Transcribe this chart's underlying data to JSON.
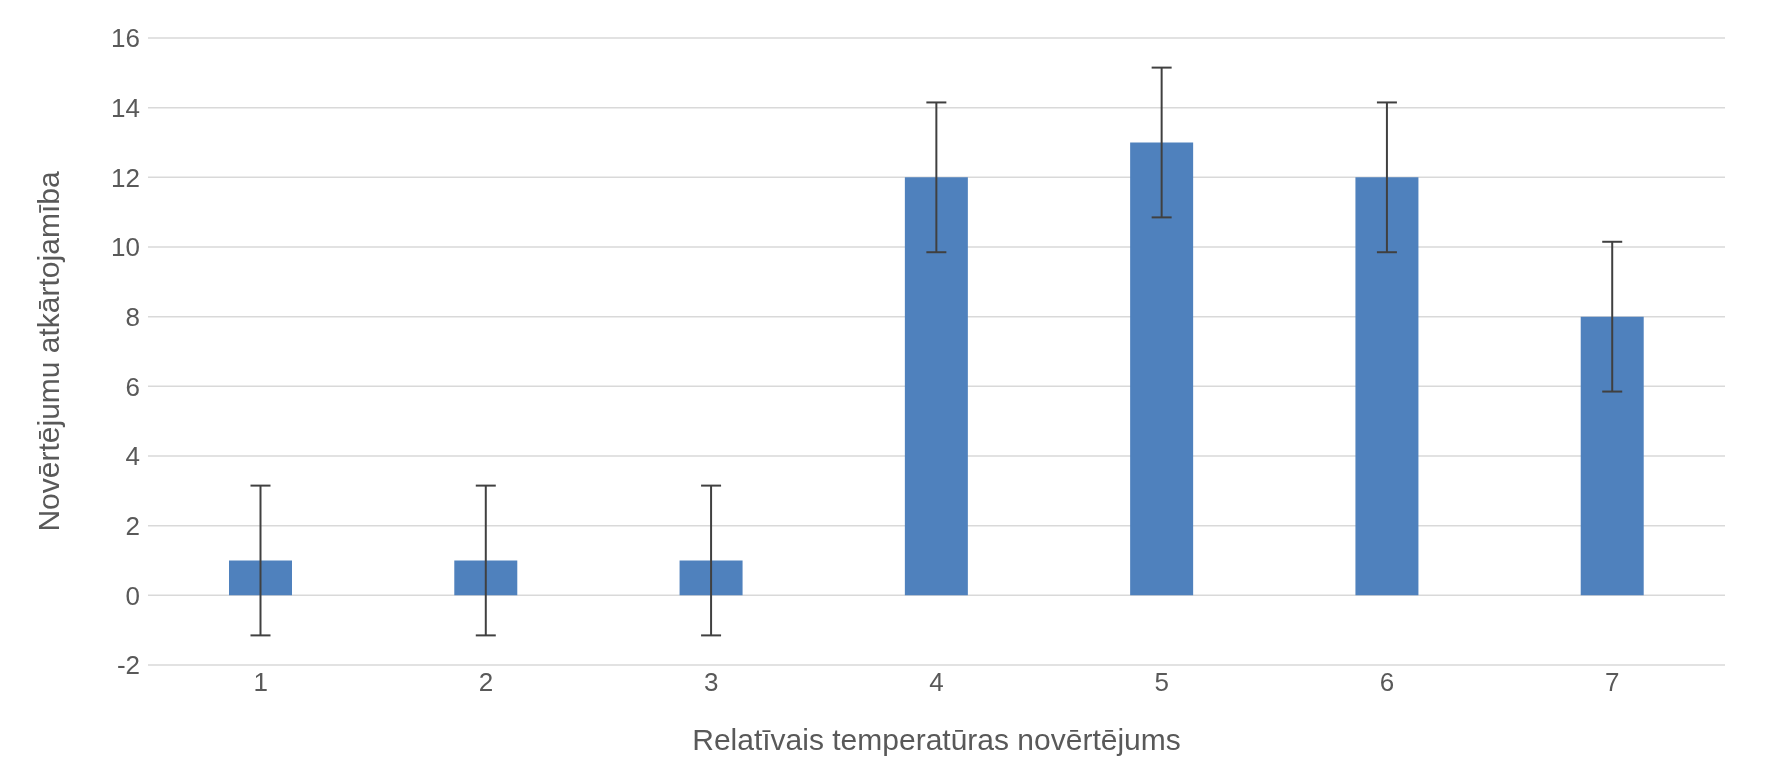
{
  "chart_data": {
    "type": "bar",
    "xlabel": "Relatīvais temperatūras novērtējums",
    "ylabel": "Novērtējumu atkārtojamība",
    "categories": [
      "1",
      "2",
      "3",
      "4",
      "5",
      "6",
      "7"
    ],
    "values": [
      1,
      1,
      1,
      12,
      13,
      12,
      8
    ],
    "errors": [
      2.15,
      2.15,
      2.15,
      2.15,
      2.15,
      2.15,
      2.15
    ],
    "color": "#4f81bd",
    "ylim": [
      -2,
      16
    ],
    "yticks": [
      -2,
      0,
      2,
      4,
      6,
      8,
      10,
      12,
      14,
      16
    ],
    "grid": "y"
  }
}
